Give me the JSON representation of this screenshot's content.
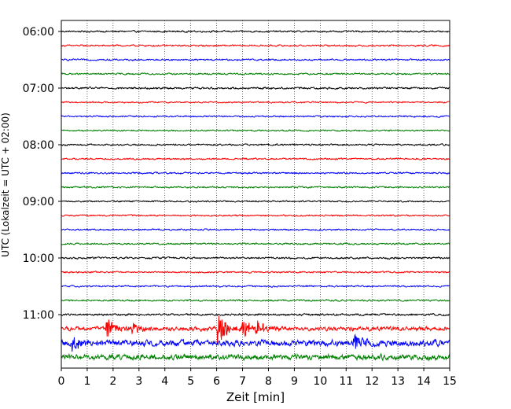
{
  "chart_data": {
    "type": "line",
    "title": "",
    "xlabel": "Zeit  [min]",
    "ylabel": "UTC (Lokalzeit = UTC + 02:00)",
    "xlim": [
      0,
      15
    ],
    "x_ticks": [
      0,
      1,
      2,
      3,
      4,
      5,
      6,
      7,
      8,
      9,
      10,
      11,
      12,
      13,
      14,
      15
    ],
    "y_tick_labels": [
      "06:00",
      "07:00",
      "08:00",
      "09:00",
      "10:00",
      "11:00"
    ],
    "grid": "vertical dotted at each minute",
    "row_interval_minutes": 15,
    "colors": [
      "#000000",
      "#ff0000",
      "#0000ff",
      "#008000"
    ],
    "rows": [
      {
        "start": "06:00",
        "color": "#000000",
        "amp": 0.12
      },
      {
        "start": "06:15",
        "color": "#ff0000",
        "amp": 0.12
      },
      {
        "start": "06:30",
        "color": "#0000ff",
        "amp": 0.12
      },
      {
        "start": "06:45",
        "color": "#008000",
        "amp": 0.12
      },
      {
        "start": "07:00",
        "color": "#000000",
        "amp": 0.14
      },
      {
        "start": "07:15",
        "color": "#ff0000",
        "amp": 0.11
      },
      {
        "start": "07:30",
        "color": "#0000ff",
        "amp": 0.11
      },
      {
        "start": "07:45",
        "color": "#008000",
        "amp": 0.11
      },
      {
        "start": "08:00",
        "color": "#000000",
        "amp": 0.12
      },
      {
        "start": "08:15",
        "color": "#ff0000",
        "amp": 0.12
      },
      {
        "start": "08:30",
        "color": "#0000ff",
        "amp": 0.12
      },
      {
        "start": "08:45",
        "color": "#008000",
        "amp": 0.12
      },
      {
        "start": "09:00",
        "color": "#000000",
        "amp": 0.11
      },
      {
        "start": "09:15",
        "color": "#ff0000",
        "amp": 0.11
      },
      {
        "start": "09:30",
        "color": "#0000ff",
        "amp": 0.11
      },
      {
        "start": "09:45",
        "color": "#008000",
        "amp": 0.12
      },
      {
        "start": "10:00",
        "color": "#000000",
        "amp": 0.13
      },
      {
        "start": "10:15",
        "color": "#ff0000",
        "amp": 0.12
      },
      {
        "start": "10:30",
        "color": "#0000ff",
        "amp": 0.12
      },
      {
        "start": "10:45",
        "color": "#008000",
        "amp": 0.13
      },
      {
        "start": "11:00",
        "color": "#000000",
        "amp": 0.14
      },
      {
        "start": "11:15",
        "color": "#ff0000",
        "amp": 0.3,
        "events": [
          {
            "t": 1.75,
            "amp": 1.1
          },
          {
            "t": 2.75,
            "amp": 0.7
          },
          {
            "t": 6.05,
            "amp": 1.6
          },
          {
            "t": 7.0,
            "amp": 1.0
          },
          {
            "t": 7.5,
            "amp": 0.8
          }
        ]
      },
      {
        "start": "11:30",
        "color": "#0000ff",
        "amp": 0.45,
        "events": [
          {
            "t": 0.4,
            "amp": 0.7
          },
          {
            "t": 11.3,
            "amp": 0.8
          }
        ]
      },
      {
        "start": "11:45",
        "color": "#008000",
        "amp": 0.4
      }
    ]
  }
}
